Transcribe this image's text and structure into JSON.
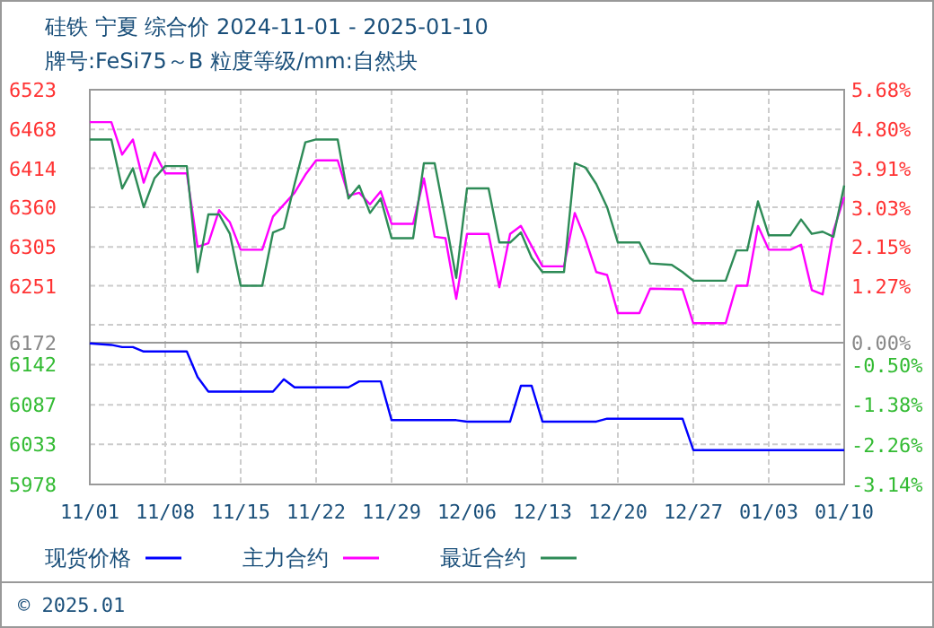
{
  "chart_data": [
    {
      "type": "line",
      "title": "硅铁  宁夏  综合价  2024-11-01 - 2025-01-10",
      "subtitle": "牌号:FeSi75～B 粒度等级/mm:自然块",
      "xlim": [
        "2024-11-01",
        "2025-01-10"
      ],
      "xticks": [
        {
          "value": "2024-11-01",
          "label": null
        },
        {
          "value": "2024-11-08",
          "label": null
        },
        {
          "value": "2024-11-15",
          "label": null
        },
        {
          "value": "2024-11-22",
          "label": null
        },
        {
          "value": "2024-11-29",
          "label": null
        },
        {
          "value": "2024-12-06",
          "label": null
        },
        {
          "value": "2024-12-13",
          "label": null
        },
        {
          "value": "2024-12-20",
          "label": null
        },
        {
          "value": "2024-12-27",
          "label": null
        },
        {
          "value": "2025-01-03",
          "label": null
        },
        {
          "value": "2025-01-10",
          "label": null
        }
      ],
      "ylim": [
        6172,
        6523
      ],
      "yticks": [
        {
          "value": 6197,
          "label": null
        },
        6251,
        6305,
        6360,
        6414,
        6468,
        6523
      ],
      "y2lim": [
        0,
        5.68
      ],
      "y2ticks": [
        {
          "value": 1.27,
          "label": "1.27%"
        },
        {
          "value": 2.15,
          "label": "2.15%"
        },
        {
          "value": 3.03,
          "label": "3.03%"
        },
        {
          "value": 3.91,
          "label": "3.91%"
        },
        {
          "value": 4.8,
          "label": "4.80%"
        },
        {
          "value": 5.68,
          "label": "5.68%"
        }
      ],
      "tick_labels": "y",
      "grid": true,
      "legend": "bottom",
      "marker": "none",
      "line_style": "solid",
      "series": [
        {
          "name": "主力合约",
          "color": "#ff00ff",
          "x": [
            "2024-11-01",
            "2024-11-03",
            "2024-11-04",
            "2024-11-05",
            "2024-11-06",
            "2024-11-07",
            "2024-11-08",
            "2024-11-10",
            "2024-11-11",
            "2024-11-12",
            "2024-11-13",
            "2024-11-14",
            "2024-11-15",
            "2024-11-17",
            "2024-11-18",
            "2024-11-20",
            "2024-11-21",
            "2024-11-22",
            "2024-11-24",
            "2024-11-25",
            "2024-11-26",
            "2024-11-27",
            "2024-11-28",
            "2024-11-29",
            "2024-12-01",
            "2024-12-02",
            "2024-12-03",
            "2024-12-04",
            "2024-12-05",
            "2024-12-06",
            "2024-12-08",
            "2024-12-09",
            "2024-12-10",
            "2024-12-11",
            "2024-12-13",
            "2024-12-15",
            "2024-12-16",
            "2024-12-17",
            "2024-12-18",
            "2024-12-19",
            "2024-12-20",
            "2024-12-22",
            "2024-12-23",
            "2024-12-26",
            "2024-12-27",
            "2024-12-30",
            "2024-12-31",
            "2025-01-01",
            "2025-01-02",
            "2025-01-03",
            "2025-01-05",
            "2025-01-06",
            "2025-01-07",
            "2025-01-08",
            "2025-01-09",
            "2025-01-10"
          ],
          "values": [
            6478,
            6478,
            6433,
            6454,
            6394,
            6436,
            6407,
            6407,
            6305,
            6310,
            6356,
            6339,
            6301,
            6301,
            6347,
            6380,
            6405,
            6425,
            6425,
            6376,
            6380,
            6364,
            6382,
            6337,
            6337,
            6400,
            6319,
            6317,
            6233,
            6323,
            6323,
            6249,
            6323,
            6334,
            6278,
            6278,
            6352,
            6315,
            6270,
            6266,
            6213,
            6213,
            6247,
            6246,
            6199,
            6199,
            6251,
            6251,
            6334,
            6301,
            6301,
            6308,
            6245,
            6239,
            6327,
            6374
          ]
        },
        {
          "name": "最近合约",
          "color": "#2e8b57",
          "x": [
            "2024-11-01",
            "2024-11-03",
            "2024-11-04",
            "2024-11-05",
            "2024-11-06",
            "2024-11-07",
            "2024-11-08",
            "2024-11-10",
            "2024-11-11",
            "2024-11-12",
            "2024-11-13",
            "2024-11-14",
            "2024-11-15",
            "2024-11-17",
            "2024-11-18",
            "2024-11-19",
            "2024-11-20",
            "2024-11-21",
            "2024-11-22",
            "2024-11-24",
            "2024-11-25",
            "2024-11-26",
            "2024-11-27",
            "2024-11-28",
            "2024-11-29",
            "2024-12-01",
            "2024-12-02",
            "2024-12-03",
            "2024-12-04",
            "2024-12-05",
            "2024-12-06",
            "2024-12-08",
            "2024-12-09",
            "2024-12-10",
            "2024-12-11",
            "2024-12-12",
            "2024-12-13",
            "2024-12-15",
            "2024-12-16",
            "2024-12-17",
            "2024-12-18",
            "2024-12-19",
            "2024-12-20",
            "2024-12-22",
            "2024-12-23",
            "2024-12-25",
            "2024-12-26",
            "2024-12-27",
            "2024-12-30",
            "2024-12-31",
            "2025-01-01",
            "2025-01-02",
            "2025-01-03",
            "2025-01-05",
            "2025-01-06",
            "2025-01-07",
            "2025-01-08",
            "2025-01-09",
            "2025-01-10"
          ],
          "values": [
            6454,
            6454,
            6386,
            6414,
            6360,
            6400,
            6417,
            6417,
            6270,
            6350,
            6350,
            6323,
            6251,
            6251,
            6325,
            6331,
            6392,
            6450,
            6454,
            6454,
            6372,
            6390,
            6352,
            6372,
            6317,
            6317,
            6421,
            6421,
            6343,
            6262,
            6386,
            6386,
            6311,
            6311,
            6325,
            6290,
            6270,
            6270,
            6421,
            6415,
            6392,
            6360,
            6311,
            6311,
            6282,
            6280,
            6270,
            6258,
            6258,
            6300,
            6300,
            6368,
            6321,
            6321,
            6343,
            6323,
            6326,
            6319,
            6390
          ]
        }
      ]
    },
    {
      "type": "line",
      "xlim": [
        "2024-11-01",
        "2025-01-10"
      ],
      "xticks": [
        {
          "value": "2024-11-01",
          "label": "11/01"
        },
        {
          "value": "2024-11-08",
          "label": "11/08"
        },
        {
          "value": "2024-11-15",
          "label": "11/15"
        },
        {
          "value": "2024-11-22",
          "label": "11/22"
        },
        {
          "value": "2024-11-29",
          "label": "11/29"
        },
        {
          "value": "2024-12-06",
          "label": "12/06"
        },
        {
          "value": "2024-12-13",
          "label": "12/13"
        },
        {
          "value": "2024-12-20",
          "label": "12/20"
        },
        {
          "value": "2024-12-27",
          "label": "12/27"
        },
        {
          "value": "2025-01-03",
          "label": "01/03"
        },
        {
          "value": "2025-01-10",
          "label": "01/10"
        }
      ],
      "ylim": [
        5978,
        6172
      ],
      "yticks": [
        5978,
        6033,
        6087,
        6142,
        6172
      ],
      "y2lim": [
        -3.14,
        0
      ],
      "y2ticks": [
        {
          "value": -3.14,
          "label": "-3.14%"
        },
        {
          "value": -2.26,
          "label": "-2.26%"
        },
        {
          "value": -1.38,
          "label": "-1.38%"
        },
        {
          "value": -0.5,
          "label": "-0.50%"
        },
        {
          "value": 0,
          "label": "0.00%"
        }
      ],
      "grid": true,
      "legend": "bottom",
      "marker": "none",
      "line_style": "solid",
      "annotations": [
        "© 2025.01"
      ],
      "series": [
        {
          "name": "现货价格",
          "color": "#0000ff",
          "x": [
            "2024-11-01",
            "2024-11-03",
            "2024-11-04",
            "2024-11-05",
            "2024-11-06",
            "2024-11-10",
            "2024-11-11",
            "2024-11-12",
            "2024-11-18",
            "2024-11-19",
            "2024-11-20",
            "2024-11-25",
            "2024-11-26",
            "2024-11-28",
            "2024-11-29",
            "2024-12-05",
            "2024-12-06",
            "2024-12-10",
            "2024-12-11",
            "2024-12-12",
            "2024-12-13",
            "2024-12-18",
            "2024-12-19",
            "2024-12-26",
            "2024-12-27",
            "2025-01-10"
          ],
          "values": [
            6171,
            6169,
            6166,
            6166,
            6160,
            6160,
            6125,
            6105,
            6105,
            6122,
            6111,
            6111,
            6119,
            6119,
            6066,
            6066,
            6064,
            6064,
            6113,
            6113,
            6064,
            6064,
            6068,
            6068,
            6025,
            6025
          ]
        }
      ]
    }
  ]
}
